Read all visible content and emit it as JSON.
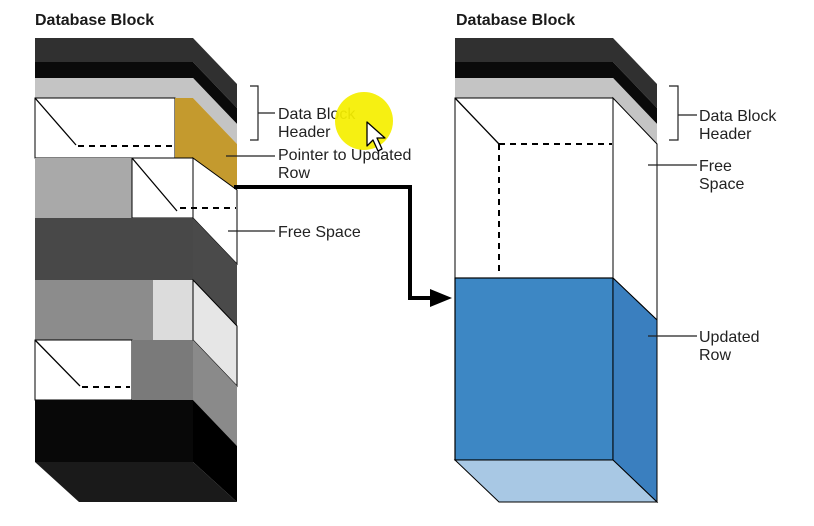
{
  "left_block": {
    "title": "Database Block",
    "labels": {
      "header": [
        "Data Block",
        "Header"
      ],
      "pointer": [
        "Pointer to Updated",
        "Row"
      ],
      "free_space": "Free Space"
    }
  },
  "right_block": {
    "title": "Database Block",
    "labels": {
      "header": [
        "Data Block",
        "Header"
      ],
      "free_space": [
        "Free",
        "Space"
      ],
      "updated_row": [
        "Updated",
        "Row"
      ]
    }
  },
  "colors": {
    "pointer_gold": "#c49a2e",
    "updated_row_blue": "#3d87c4",
    "updated_row_side": "#3a7fbf",
    "updated_row_bottom": "#a8c8e4",
    "cursor_highlight": "#f5ef00"
  },
  "icons": [
    "cursor-arrow-icon",
    "cursor-highlight-icon",
    "arrowhead-icon"
  ]
}
